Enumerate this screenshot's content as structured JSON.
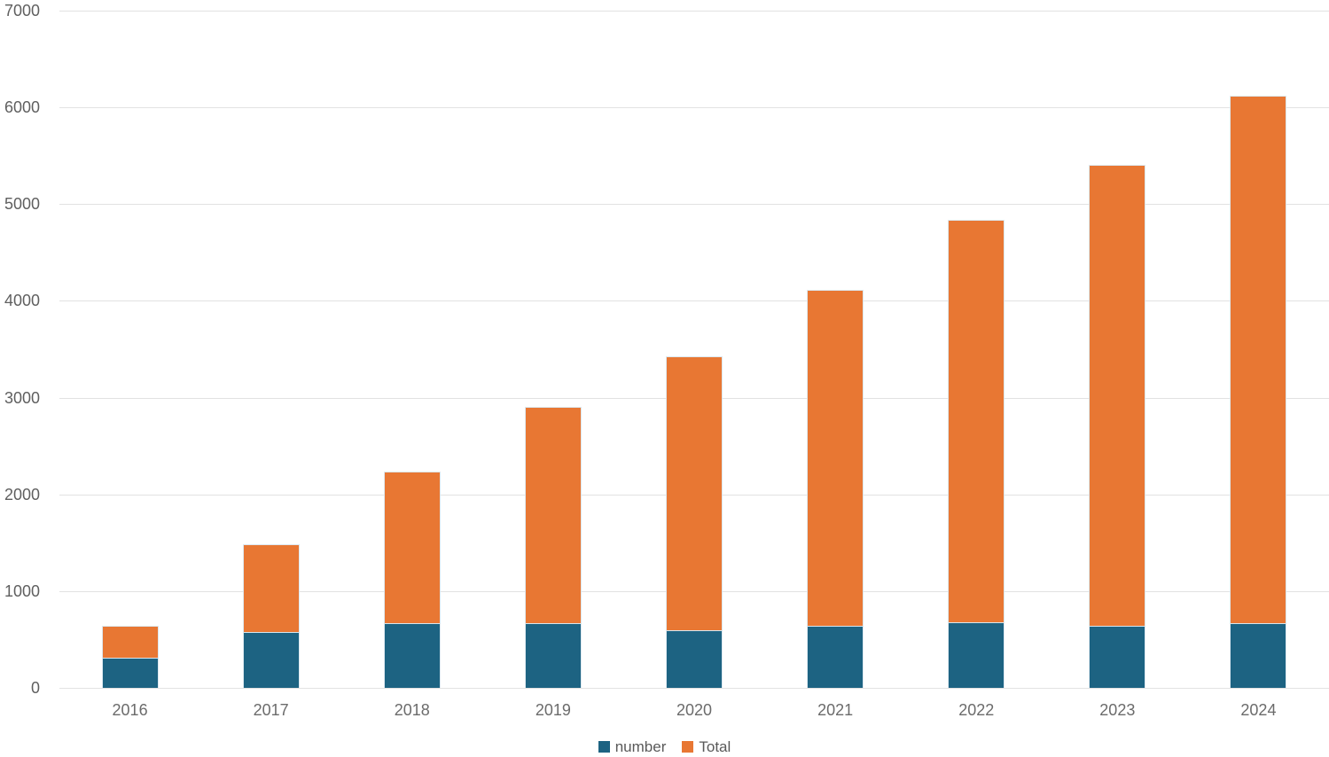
{
  "chart": {
    "background_color": "#ffffff",
    "gridline_color": "#e2e2e2",
    "tick_text_color": "#5f5f5f",
    "legend_text_color": "#595959"
  },
  "chart_data": {
    "type": "bar",
    "stacked": true,
    "title": "",
    "xlabel": "",
    "ylabel": "",
    "categories": [
      "2016",
      "2017",
      "2018",
      "2019",
      "2020",
      "2021",
      "2022",
      "2023",
      "2024"
    ],
    "series": [
      {
        "name": "number",
        "color": "#1d6382",
        "values": [
          320,
          580,
          670,
          670,
          600,
          640,
          680,
          640,
          670
        ]
      },
      {
        "name": "Total",
        "color": "#e87733",
        "values": [
          320,
          900,
          1570,
          2230,
          2830,
          3470,
          4160,
          4770,
          5450
        ]
      }
    ],
    "stack_tops": [
      640,
      1480,
      2240,
      2900,
      3430,
      4110,
      4840,
      5410,
      6120
    ],
    "ylim": [
      0,
      7000
    ],
    "yticks": [
      0,
      1000,
      2000,
      3000,
      4000,
      5000,
      6000,
      7000
    ],
    "ytick_labels": [
      "0",
      "1000",
      "2000",
      "3000",
      "4000",
      "5000",
      "6000",
      "7000"
    ],
    "grid": true,
    "legend_position": "bottom-center"
  },
  "legend": {
    "items": [
      {
        "label": "number",
        "color": "#1d6382"
      },
      {
        "label": "Total",
        "color": "#e87733"
      }
    ]
  }
}
